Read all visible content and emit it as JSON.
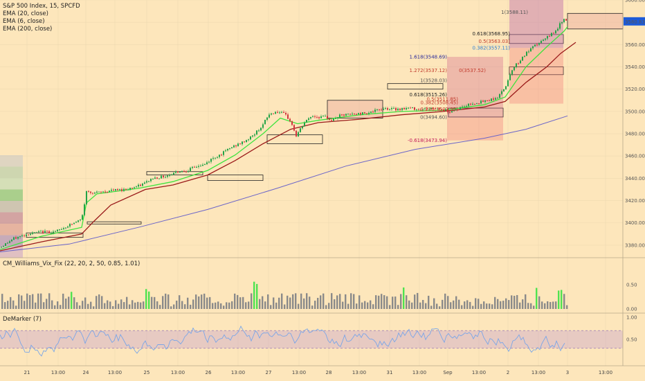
{
  "legend_main": {
    "title": "S&P 500 Index, 15, SPCFD",
    "ema1": "EMA (20, close)",
    "ema2": "EMA (6, close)",
    "ema3": "EMA (200, close)"
  },
  "legend_vix": "CM_Williams_Vix_Fix (22, 20, 2, 50, 0.85, 1.01)",
  "legend_dem": "DeMarker (7)",
  "colors": {
    "background": "#fde6bb",
    "bull": "#22a346",
    "bear": "#d0343c",
    "ema_fast": "#3ee33e",
    "ema_mid": "#9a1a1a",
    "ema_slow": "#6a64c9",
    "vix_bar": "#8a8a8a",
    "vix_spike": "#4fe34f",
    "demarker": "#7aa6e8",
    "price_label": "#1e5bd8"
  },
  "chart_data": [
    {
      "type": "candlestick",
      "title": "S&P 500 Index, 15, SPCFD",
      "y_ticks": [
        "3380.00",
        "3400.00",
        "3420.00",
        "3440.00",
        "3460.00",
        "3480.00",
        "3500.00",
        "3520.00",
        "3540.00",
        "3560.00",
        "3580.00",
        "3600.00"
      ],
      "ylim": [
        3370,
        3600
      ],
      "last_price": "3580.83",
      "x_ticks": [
        "21",
        "13:00",
        "24",
        "13:00",
        "25",
        "13:00",
        "26",
        "13:00",
        "27",
        "13:00",
        "28",
        "13:00",
        "31",
        "13:00",
        "Sep",
        "13:00",
        "2",
        "13:00",
        "3",
        "13:00"
      ],
      "close_path": [
        [
          0,
          3378
        ],
        [
          20,
          3386
        ],
        [
          40,
          3390
        ],
        [
          60,
          3392
        ],
        [
          80,
          3392
        ],
        [
          100,
          3398
        ],
        [
          118,
          3403
        ],
        [
          125,
          3428
        ],
        [
          140,
          3427
        ],
        [
          160,
          3429
        ],
        [
          180,
          3430
        ],
        [
          200,
          3433
        ],
        [
          210,
          3436
        ],
        [
          220,
          3440
        ],
        [
          230,
          3441
        ],
        [
          240,
          3442
        ],
        [
          255,
          3446
        ],
        [
          270,
          3447
        ],
        [
          285,
          3451
        ],
        [
          295,
          3452
        ],
        [
          305,
          3457
        ],
        [
          320,
          3462
        ],
        [
          335,
          3468
        ],
        [
          350,
          3472
        ],
        [
          365,
          3478
        ],
        [
          380,
          3488
        ],
        [
          388,
          3497
        ],
        [
          400,
          3500
        ],
        [
          412,
          3497
        ],
        [
          420,
          3491
        ],
        [
          428,
          3478
        ],
        [
          440,
          3490
        ],
        [
          450,
          3496
        ],
        [
          460,
          3495
        ],
        [
          470,
          3495
        ],
        [
          480,
          3492
        ],
        [
          490,
          3496
        ],
        [
          500,
          3497
        ],
        [
          520,
          3498
        ],
        [
          540,
          3500
        ],
        [
          555,
          3503
        ],
        [
          570,
          3502
        ],
        [
          590,
          3503
        ],
        [
          610,
          3502
        ],
        [
          630,
          3503
        ],
        [
          650,
          3500
        ],
        [
          660,
          3502
        ],
        [
          680,
          3507
        ],
        [
          700,
          3509
        ],
        [
          720,
          3513
        ],
        [
          730,
          3522
        ],
        [
          740,
          3538
        ],
        [
          750,
          3545
        ],
        [
          760,
          3552
        ],
        [
          775,
          3560
        ],
        [
          790,
          3566
        ],
        [
          805,
          3574
        ],
        [
          815,
          3584
        ],
        [
          820,
          3581
        ]
      ],
      "ema_slow_path": [
        [
          0,
          3374
        ],
        [
          100,
          3381
        ],
        [
          200,
          3396
        ],
        [
          300,
          3412
        ],
        [
          400,
          3431
        ],
        [
          500,
          3451
        ],
        [
          600,
          3466
        ],
        [
          700,
          3476
        ],
        [
          760,
          3484
        ],
        [
          820,
          3496
        ]
      ],
      "ema_mid_path": [
        [
          0,
          3375
        ],
        [
          60,
          3383
        ],
        [
          118,
          3390
        ],
        [
          135,
          3401
        ],
        [
          160,
          3416
        ],
        [
          210,
          3430
        ],
        [
          250,
          3434
        ],
        [
          300,
          3443
        ],
        [
          340,
          3456
        ],
        [
          380,
          3471
        ],
        [
          420,
          3484
        ],
        [
          460,
          3490
        ],
        [
          520,
          3493
        ],
        [
          580,
          3497
        ],
        [
          640,
          3500
        ],
        [
          700,
          3504
        ],
        [
          730,
          3509
        ],
        [
          760,
          3526
        ],
        [
          790,
          3540
        ],
        [
          810,
          3552
        ],
        [
          832,
          3562
        ]
      ],
      "ema_fast_path": [
        [
          0,
          3376
        ],
        [
          60,
          3388
        ],
        [
          118,
          3396
        ],
        [
          125,
          3418
        ],
        [
          140,
          3426
        ],
        [
          200,
          3431
        ],
        [
          250,
          3437
        ],
        [
          300,
          3447
        ],
        [
          340,
          3461
        ],
        [
          380,
          3480
        ],
        [
          405,
          3494
        ],
        [
          430,
          3489
        ],
        [
          460,
          3492
        ],
        [
          520,
          3497
        ],
        [
          580,
          3500
        ],
        [
          640,
          3501
        ],
        [
          700,
          3506
        ],
        [
          730,
          3513
        ],
        [
          760,
          3540
        ],
        [
          790,
          3558
        ],
        [
          815,
          3572
        ],
        [
          820,
          3576
        ]
      ],
      "fib_labels": [
        {
          "text": "1(3588.11)",
          "x_data": 763,
          "y": 3589,
          "color": "#555"
        },
        {
          "text": "0.618(3568.95)",
          "x_data": 737,
          "y": 3570,
          "color": "#222"
        },
        {
          "text": "0.5(3563.03)",
          "x_data": 737,
          "y": 3563,
          "color": "#c0392b"
        },
        {
          "text": "0.382(3557.11)",
          "x_data": 737,
          "y": 3557,
          "color": "#2d7fd2"
        },
        {
          "text": "1.618(3548.69)",
          "x_data": 646,
          "y": 3549,
          "color": "#2b2b9a"
        },
        {
          "text": "1.272(3537.12)",
          "x_data": 646,
          "y": 3537,
          "color": "#c0392b"
        },
        {
          "text": "1(3528.03)",
          "x_data": 646,
          "y": 3528,
          "color": "#555"
        },
        {
          "text": "0.618(3515.26)",
          "x_data": 646,
          "y": 3515,
          "color": "#222"
        },
        {
          "text": "0(3494.60)",
          "x_data": 646,
          "y": 3495,
          "color": "#555"
        },
        {
          "text": "-0.618(3473.94)",
          "x_data": 646,
          "y": 3474,
          "color": "#c2185b"
        },
        {
          "text": "0.5(3511.85)",
          "x_data": 662,
          "y": 3511,
          "color": "#c0392b"
        },
        {
          "text": "0.382(3508.45)",
          "x_data": 662,
          "y": 3508,
          "color": "#c0392b"
        },
        {
          "text": "0.236(3502.95)",
          "x_data": 662,
          "y": 3502,
          "color": "#c0392b"
        },
        {
          "text": "0(3537.52)",
          "x_data": 702,
          "y": 3537,
          "color": "#c0392b"
        }
      ]
    },
    {
      "type": "bar",
      "title": "CM_Williams_Vix_Fix (22, 20, 2, 50, 0.85, 1.01)",
      "y_ticks": [
        "0.00",
        "0.50"
      ],
      "ylim": [
        0,
        1.0
      ],
      "spike_x": [
        102,
        210,
        214,
        236,
        240,
        244,
        248,
        288,
        292,
        366,
        370,
        392,
        396,
        400,
        424,
        428,
        432,
        582,
        736,
        740,
        774,
        806,
        810
      ],
      "peak": {
        "x": 428,
        "value": 0.97
      }
    },
    {
      "type": "line",
      "title": "DeMarker (7)",
      "y_ticks": [
        "0.50",
        "1.00"
      ],
      "ylim": [
        0,
        1.0
      ],
      "bands": [
        0.3,
        0.7
      ]
    }
  ]
}
